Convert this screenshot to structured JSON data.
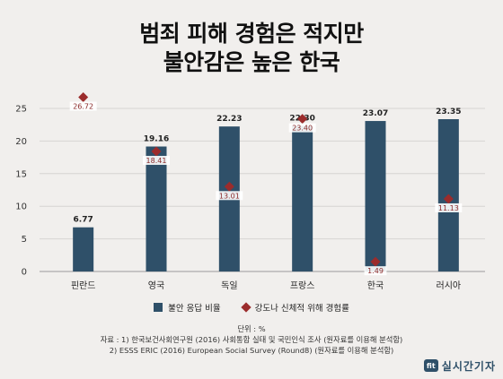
{
  "title_lines": [
    "범죄 피해 경험은 적지만",
    "불안감은 높은 한국"
  ],
  "chart_data": {
    "type": "bar",
    "categories": [
      "핀란드",
      "영국",
      "독일",
      "프랑스",
      "한국",
      "러시아"
    ],
    "series": [
      {
        "name": "불안 응답 비율",
        "type": "bar",
        "color": "#2f5069",
        "values": [
          6.77,
          19.16,
          22.23,
          22.3,
          23.07,
          23.35
        ]
      },
      {
        "name": "강도나 신체적 위해 경험률",
        "type": "scatter",
        "marker": "diamond",
        "color": "#9b2c2c",
        "values": [
          26.72,
          18.41,
          13.01,
          23.4,
          1.49,
          11.13
        ]
      }
    ],
    "ylim": [
      0,
      25
    ],
    "yticks": [
      0,
      5,
      10,
      15,
      20,
      25
    ],
    "grid": true,
    "legend_position": "bottom"
  },
  "unit_note": "단위 : %",
  "source_lines": [
    "자료 : 1) 한국보건사회연구원 (2016) 사회통합 실태 및 국민인식 조사 (원자료를 이용해 분석함)",
    "2) ESSS ERIC (2016) European Social Survey (Round8) (원자료를 이용해 분석함)"
  ],
  "brand": {
    "icon_text": "fit",
    "name": "실시간기자"
  }
}
